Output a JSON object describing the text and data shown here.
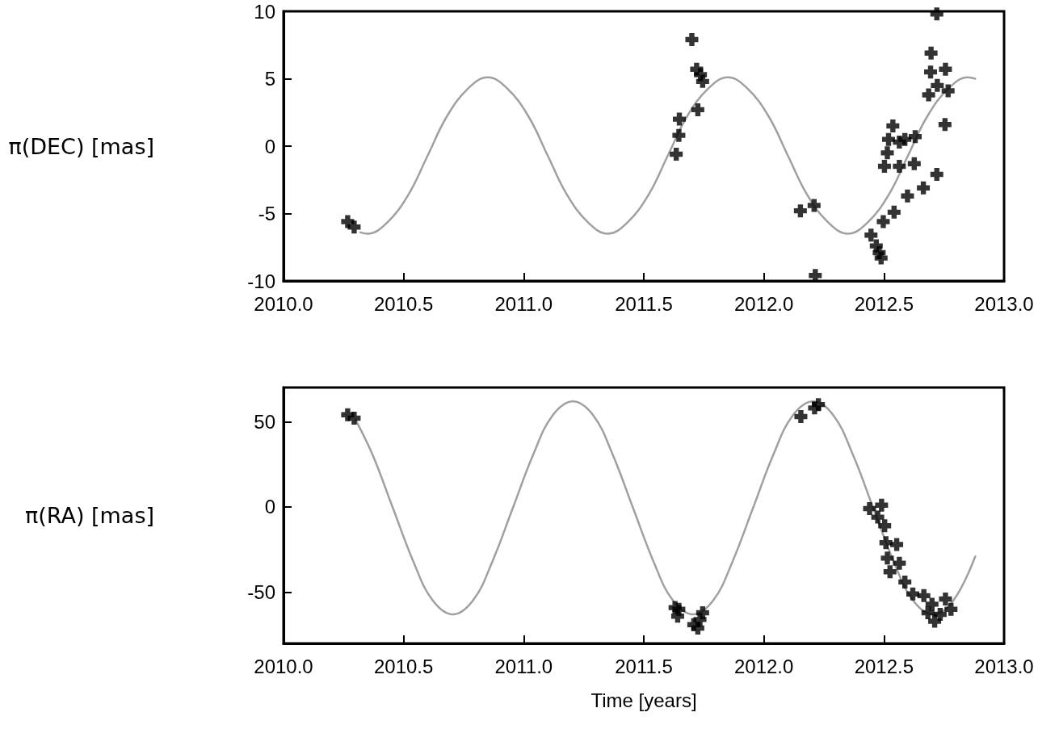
{
  "chart_data": [
    {
      "type": "scatter",
      "ylabel": "π(DEC) [mas]",
      "xlim": [
        2010,
        2013
      ],
      "xticks": [
        {
          "value": 2010,
          "label": "2010.0"
        },
        {
          "value": 2010.5,
          "label": "2010.5"
        },
        {
          "value": 2011,
          "label": "2011.0"
        },
        {
          "value": 2011.5,
          "label": "2011.5"
        },
        {
          "value": 2012,
          "label": "2012.0"
        },
        {
          "value": 2012.5,
          "label": "2012.5"
        },
        {
          "value": 2013,
          "label": "2013.0"
        }
      ],
      "ylim": [
        -10,
        10
      ],
      "yticks": [
        -10,
        -5,
        0,
        5,
        10
      ],
      "grid": false,
      "series": [
        {
          "type": "line",
          "color": "#a0a0a0",
          "marker": "none",
          "line_style": "solid",
          "x": [
            2010.32,
            2010.35,
            2010.43,
            2010.52,
            2010.6,
            2010.68,
            2010.77,
            2010.85,
            2010.93,
            2011.02,
            2011.1,
            2011.18,
            2011.27,
            2011.35,
            2011.43,
            2011.52,
            2011.6,
            2011.68,
            2011.77,
            2011.85,
            2011.93,
            2012.02,
            2012.1,
            2012.18,
            2012.27,
            2012.35,
            2012.43,
            2012.52,
            2012.6,
            2012.68,
            2012.77,
            2012.85,
            2012.88
          ],
          "values": [
            -6.4,
            -6.5,
            -5.7,
            -3.6,
            -0.7,
            2.2,
            4.3,
            5.1,
            4.3,
            2.2,
            -0.7,
            -3.6,
            -5.7,
            -6.5,
            -5.7,
            -3.6,
            -0.7,
            2.2,
            4.3,
            5.1,
            4.3,
            2.2,
            -0.7,
            -3.6,
            -5.7,
            -6.5,
            -5.7,
            -3.6,
            -0.7,
            2.2,
            4.3,
            5.1,
            5.0
          ]
        },
        {
          "color": "#000000",
          "marker": "cross",
          "x": [
            2010.267,
            2010.294,
            2011.635,
            2011.646,
            2011.648,
            2011.7,
            2011.72,
            2011.736,
            2011.745,
            2011.725,
            2012.152,
            2012.209,
            2012.214,
            2012.72,
            2012.696,
            2012.694,
            2012.756,
            2012.686,
            2012.722,
            2012.767,
            2012.754,
            2012.537,
            2012.519,
            2012.564,
            2012.587,
            2012.63,
            2012.514,
            2012.502,
            2012.564,
            2012.626,
            2012.72,
            2012.664,
            2012.598,
            2012.542,
            2012.497,
            2012.446,
            2012.468,
            2012.48,
            2012.488
          ],
          "values": [
            -5.6,
            -6.0,
            -0.6,
            0.8,
            2.0,
            7.9,
            5.7,
            5.3,
            4.8,
            2.7,
            -4.8,
            -4.4,
            -9.6,
            9.8,
            6.9,
            5.5,
            5.7,
            3.8,
            4.5,
            4.1,
            1.6,
            1.5,
            0.5,
            0.3,
            0.5,
            0.7,
            -0.5,
            -1.5,
            -1.5,
            -1.3,
            -2.1,
            -3.1,
            -3.7,
            -4.9,
            -5.6,
            -6.6,
            -7.4,
            -7.9,
            -8.3
          ]
        }
      ]
    },
    {
      "type": "scatter",
      "ylabel": "π(RA) [mas]",
      "xlabel": "Time [years]",
      "xlim": [
        2010,
        2013
      ],
      "xticks": [
        {
          "value": 2010,
          "label": "2010.0"
        },
        {
          "value": 2010.5,
          "label": "2010.5"
        },
        {
          "value": 2011,
          "label": "2011.0"
        },
        {
          "value": 2011.5,
          "label": "2011.5"
        },
        {
          "value": 2012,
          "label": "2012.0"
        },
        {
          "value": 2012.5,
          "label": "2012.5"
        },
        {
          "value": 2013,
          "label": "2013.0"
        }
      ],
      "ylim": [
        -80,
        70
      ],
      "yticks": [
        -50,
        0,
        50
      ],
      "grid": false,
      "series": [
        {
          "type": "line",
          "color": "#a0a0a0",
          "marker": "none",
          "line_style": "solid",
          "x": [
            2010.3,
            2010.37,
            2010.455,
            2010.54,
            2010.62,
            2010.705,
            2010.79,
            2010.87,
            2010.955,
            2011.04,
            2011.12,
            2011.205,
            2011.29,
            2011.37,
            2011.455,
            2011.54,
            2011.62,
            2011.705,
            2011.79,
            2011.87,
            2011.955,
            2012.04,
            2012.12,
            2012.205,
            2012.29,
            2012.37,
            2012.455,
            2012.54,
            2012.62,
            2012.705,
            2012.79,
            2012.88
          ],
          "values": [
            51,
            30.8,
            -0.5,
            -31.8,
            -54.6,
            -63,
            -54.6,
            -31.8,
            -0.5,
            30.8,
            53.6,
            62,
            53.6,
            30.8,
            -0.5,
            -31.8,
            -54.6,
            -63,
            -54.6,
            -31.8,
            -0.5,
            30.8,
            53.6,
            62,
            53.6,
            30.8,
            -0.5,
            -31.8,
            -54.6,
            -63,
            -54.6,
            -29
          ]
        },
        {
          "color": "#000000",
          "marker": "cross",
          "x": [
            2010.267,
            2010.294,
            2012.154,
            2012.211,
            2012.227,
            2011.63,
            2011.641,
            2011.646,
            2011.708,
            2011.725,
            2011.745,
            2011.734,
            2012.44,
            2012.49,
            2012.474,
            2012.503,
            2012.508,
            2012.553,
            2012.514,
            2012.564,
            2012.525,
            2012.587,
            2012.62,
            2012.666,
            2012.7,
            2012.756,
            2012.779,
            2012.711,
            2012.734,
            2012.683
          ],
          "values": [
            54,
            52,
            53,
            58,
            60,
            -59,
            -64,
            -60,
            -69,
            -71,
            -62,
            -66,
            -1,
            1,
            -6,
            -11,
            -21,
            -22,
            -30,
            -33,
            -38,
            -44,
            -51,
            -52,
            -57,
            -54,
            -60,
            -67,
            -63,
            -62
          ]
        }
      ]
    }
  ]
}
